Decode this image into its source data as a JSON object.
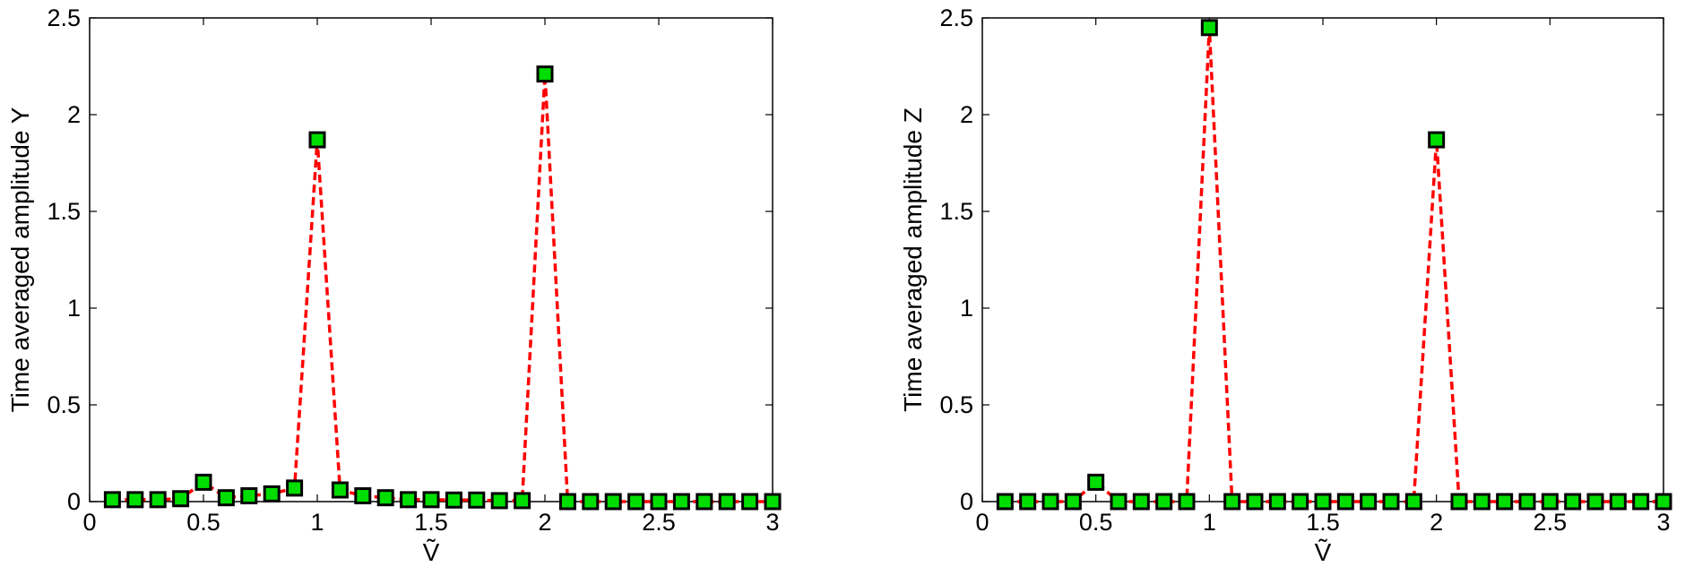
{
  "colors": {
    "line": "#ff0000",
    "marker_fill": "#00dd00",
    "marker_edge": "#000000",
    "axes": "#000000"
  },
  "chart_data": [
    {
      "type": "line",
      "xlabel": "Ṽ",
      "ylabel": "Time averaged amplitude Y",
      "xlim": [
        0,
        3
      ],
      "ylim": [
        0,
        2.5
      ],
      "xticks": [
        "0",
        "0.5",
        "1",
        "1.5",
        "2",
        "2.5",
        "3"
      ],
      "yticks": [
        "0",
        "0.5",
        "1",
        "1.5",
        "2",
        "2.5"
      ],
      "grid": false,
      "line_style": "dashed",
      "marker": "square",
      "x": [
        0.1,
        0.2,
        0.3,
        0.4,
        0.5,
        0.6,
        0.7,
        0.8,
        0.9,
        1.0,
        1.1,
        1.2,
        1.3,
        1.4,
        1.5,
        1.6,
        1.7,
        1.8,
        1.9,
        2.0,
        2.1,
        2.2,
        2.3,
        2.4,
        2.5,
        2.6,
        2.7,
        2.8,
        2.9,
        3.0
      ],
      "y": [
        0.01,
        0.01,
        0.01,
        0.015,
        0.1,
        0.02,
        0.03,
        0.04,
        0.07,
        1.87,
        0.06,
        0.03,
        0.02,
        0.01,
        0.01,
        0.008,
        0.008,
        0.005,
        0.005,
        2.21,
        0.0,
        0.0,
        0.0,
        0.0,
        0.0,
        0.0,
        0.0,
        0.0,
        0.0,
        0.0
      ]
    },
    {
      "type": "line",
      "xlabel": "Ṽ",
      "ylabel": "Time averaged amplitude Z",
      "xlim": [
        0,
        3
      ],
      "ylim": [
        0,
        2.5
      ],
      "xticks": [
        "0",
        "0.5",
        "1",
        "1.5",
        "2",
        "2.5",
        "3"
      ],
      "yticks": [
        "0",
        "0.5",
        "1",
        "1.5",
        "2",
        "2.5"
      ],
      "grid": false,
      "line_style": "dashed",
      "marker": "square",
      "x": [
        0.1,
        0.2,
        0.3,
        0.4,
        0.5,
        0.6,
        0.7,
        0.8,
        0.9,
        1.0,
        1.1,
        1.2,
        1.3,
        1.4,
        1.5,
        1.6,
        1.7,
        1.8,
        1.9,
        2.0,
        2.1,
        2.2,
        2.3,
        2.4,
        2.5,
        2.6,
        2.7,
        2.8,
        2.9,
        3.0
      ],
      "y": [
        0.0,
        0.0,
        0.0,
        0.0,
        0.1,
        0.0,
        0.0,
        0.0,
        0.0,
        2.45,
        0.0,
        0.0,
        0.0,
        0.0,
        0.0,
        0.0,
        0.0,
        0.0,
        0.0,
        1.87,
        0.0,
        0.0,
        0.0,
        0.0,
        0.0,
        0.0,
        0.0,
        0.0,
        0.0,
        0.0
      ]
    }
  ]
}
